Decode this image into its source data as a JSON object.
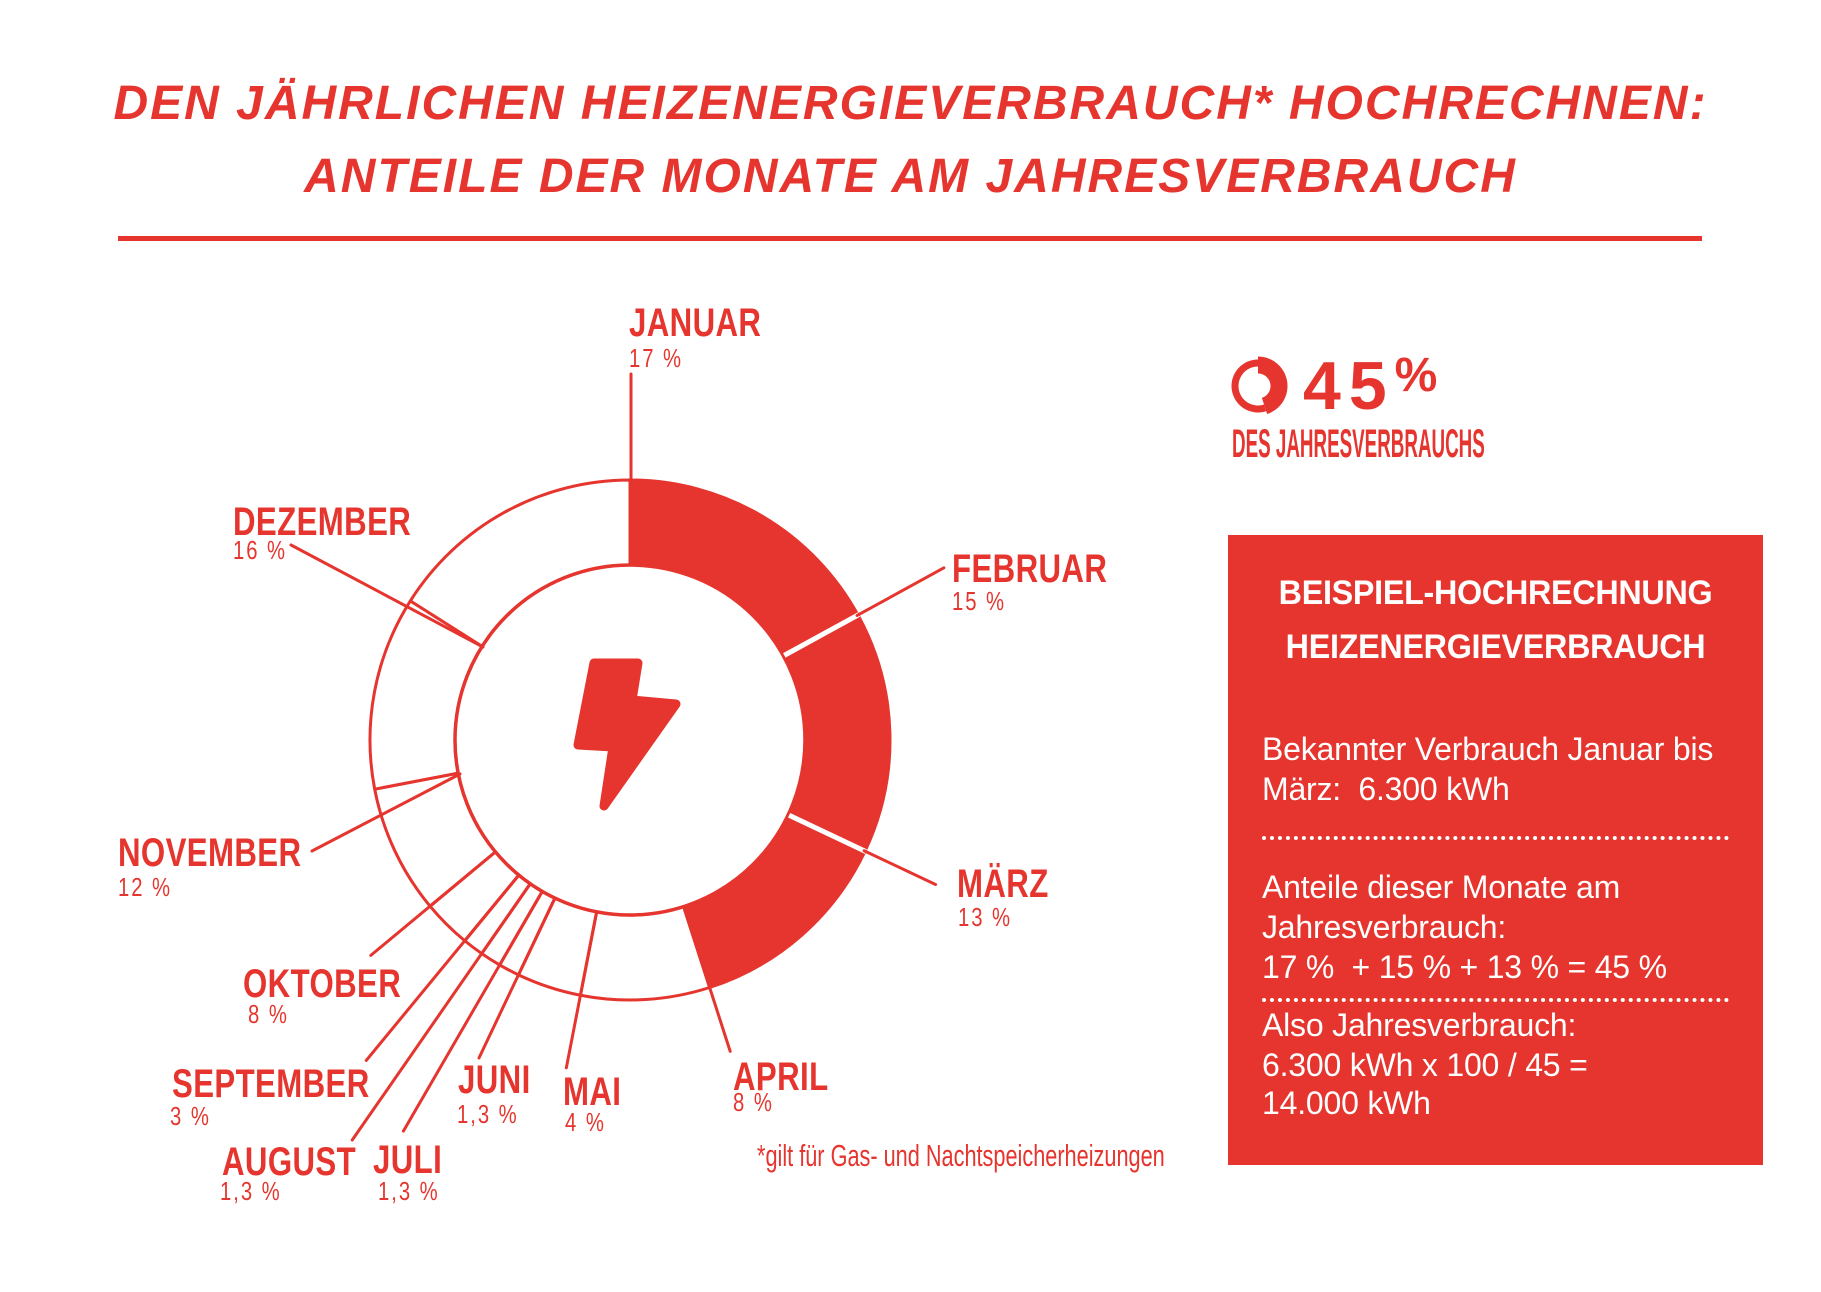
{
  "page": {
    "title_line1": "DEN JÄHRLICHEN HEIZENERGIEVERBRAUCH* HOCHRECHNEN:",
    "title_line2": "ANTEILE DER MONATE AM JAHRESVERBRAUCH",
    "footnote": "*gilt für Gas- und Nachtspeicherheizungen",
    "brand_color": "#e5352e"
  },
  "summary": {
    "value": "45",
    "percent_sign": "%",
    "caption": "DES JAHRESVERBRAUCHS"
  },
  "example_box": {
    "title_line1": "BEISPIEL-HOCHRECHNUNG",
    "title_line2": "HEIZENERGIEVERBRAUCH",
    "p1_line1": "Bekannter Verbrauch Januar bis",
    "p1_line2": "März:  6.300 kWh",
    "p2_line1": "Anteile dieser Monate am",
    "p2_line2": "Jahresverbrauch:",
    "p2_line3": "17 %  + 15 % + 13 % = 45 %",
    "p3_line1": "Also Jahresverbrauch:",
    "p3_line2": "6.300 kWh x 100 / 45 =",
    "p3_line3": "14.000 kWh"
  },
  "chart_data": {
    "type": "pie",
    "subtype": "donut",
    "title": "Anteile der Monate am Jahresverbrauch",
    "unit": "%",
    "start_angle_deg": 0,
    "direction": "clockwise",
    "months": [
      {
        "name": "JANUAR",
        "value": 17,
        "percent_label": "17 %",
        "filled": true
      },
      {
        "name": "FEBRUAR",
        "value": 15,
        "percent_label": "15 %",
        "filled": true
      },
      {
        "name": "MÄRZ",
        "value": 13,
        "percent_label": "13 %",
        "filled": true
      },
      {
        "name": "APRIL",
        "value": 8,
        "percent_label": "8 %",
        "filled": false
      },
      {
        "name": "MAI",
        "value": 4,
        "percent_label": "4 %",
        "filled": false
      },
      {
        "name": "JUNI",
        "value": 1.3,
        "percent_label": "1,3 %",
        "filled": false
      },
      {
        "name": "JULI",
        "value": 1.3,
        "percent_label": "1,3 %",
        "filled": false
      },
      {
        "name": "AUGUST",
        "value": 1.3,
        "percent_label": "1,3 %",
        "filled": false
      },
      {
        "name": "SEPTEMBER",
        "value": 3,
        "percent_label": "3 %",
        "filled": false
      },
      {
        "name": "OKTOBER",
        "value": 8,
        "percent_label": "8 %",
        "filled": false
      },
      {
        "name": "NOVEMBER",
        "value": 12,
        "percent_label": "12 %",
        "filled": false
      },
      {
        "name": "DEZEMBER",
        "value": 16,
        "percent_label": "16 %",
        "filled": false
      }
    ],
    "highlighted_share": {
      "months": [
        "JANUAR",
        "FEBRUAR",
        "MÄRZ"
      ],
      "total_percent": 45
    }
  }
}
